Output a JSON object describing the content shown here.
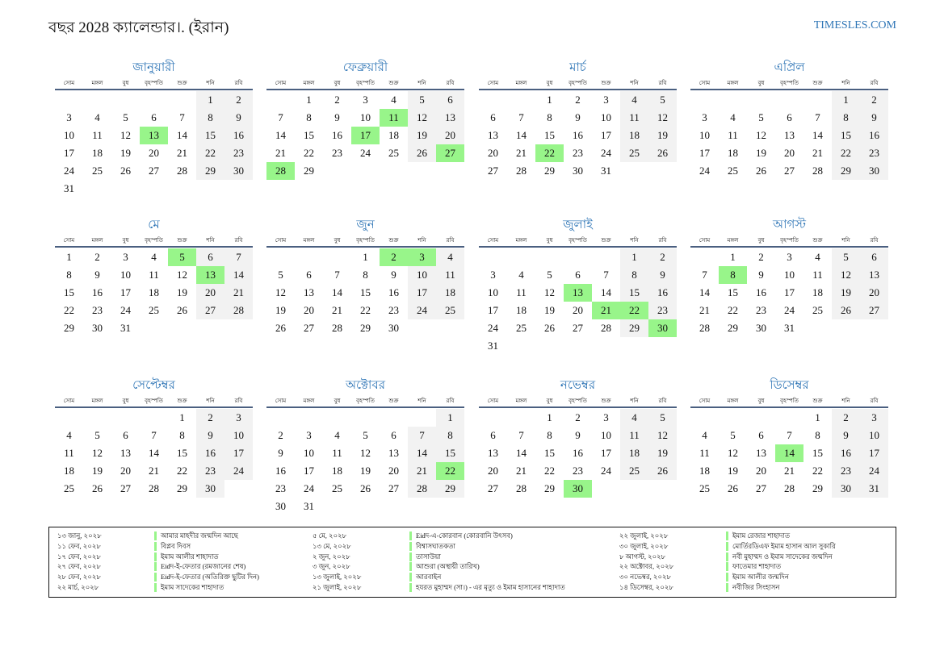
{
  "header": {
    "title": "বছর 2028 ক্যালেন্ডার।. (ইরান)",
    "site": "TIMESLES.COM",
    "accent": "#2e75b6"
  },
  "year": 2028,
  "weekdays": [
    "সোম",
    "মঙ্গল",
    "বুধ",
    "বৃহস্পতি",
    "শুক্র",
    "শনি",
    "রবি"
  ],
  "months": [
    {
      "name": "জানুয়ারী",
      "highlight": [
        13
      ]
    },
    {
      "name": "ফেব্রুয়ারী",
      "highlight": [
        11,
        17,
        27,
        28
      ]
    },
    {
      "name": "মার্চ",
      "highlight": [
        22
      ]
    },
    {
      "name": "এপ্রিল",
      "highlight": []
    },
    {
      "name": "মে",
      "highlight": [
        5,
        13
      ]
    },
    {
      "name": "জুন",
      "highlight": [
        2,
        3
      ]
    },
    {
      "name": "জুলাই",
      "highlight": [
        13,
        21,
        22,
        30
      ]
    },
    {
      "name": "আগস্ট",
      "highlight": [
        8
      ]
    },
    {
      "name": "সেপ্টেম্বর",
      "highlight": []
    },
    {
      "name": "অক্টোবর",
      "highlight": [
        22
      ]
    },
    {
      "name": "নভেম্বর",
      "highlight": [
        30
      ]
    },
    {
      "name": "ডিসেম্বর",
      "highlight": [
        14
      ]
    }
  ],
  "colors": {
    "highlight": "#98f58a",
    "weekend": "#f2f2f2",
    "rule": "#4a5f80"
  },
  "holidays": [
    [
      {
        "date": "১৩ জানু, ২০২৮",
        "name": "আমার মাহদীর জন্মদিন আছে"
      },
      {
        "date": "১১ ফেব, ২০২৮",
        "name": "বিপ্লব দিবস"
      },
      {
        "date": "১৭ ফেব, ২০২৮",
        "name": "ইমাম আলীর শাহাদাত"
      },
      {
        "date": "২৭ ফেব, ২০২৮",
        "name": "Eidদ-ই-ফেতার (রমজানের শেষ)"
      },
      {
        "date": "২৮ ফেব, ২০২৮",
        "name": "Eidদ-ই-ফেতার (অতিরিক্ত ছুটির দিন)"
      },
      {
        "date": "২২ মার্চ, ২০২৮",
        "name": "ইমাম সাদেকের শাহাদাত"
      }
    ],
    [
      {
        "date": "৫ মে, ২০২৮",
        "name": "Eidদ-এ-কোরবান (কোরবানি উৎসব)"
      },
      {
        "date": "১৩ মে, ২০২৮",
        "name": "বিশ্বাসঘাতকতা"
      },
      {
        "date": "২ জুন, ২০২৮",
        "name": "তাসাউয়া"
      },
      {
        "date": "৩ জুন, ২০২৮",
        "name": "আশুরা (অস্থায়ী তারিখ)"
      },
      {
        "date": "১৩ জুলাই, ২০২৮",
        "name": "আরবাইন"
      },
      {
        "date": "২১ জুলাই, ২০২৮",
        "name": "হযরত মুহাম্মদ (সা।) - এর মৃত্যু ও ইমাম হাসানের শাহাদাত"
      }
    ],
    [
      {
        "date": "২২ জুলাই, ২০২৮",
        "name": "ইমাম রেজার শাহাদাত"
      },
      {
        "date": "৩০ জুলাই, ২০২৮",
        "name": "মোর্তিরডিএফ ইমাম হাসান আল সুকারি"
      },
      {
        "date": "৮ আগস্ট, ২০২৮",
        "name": "নবী মুহাম্মদ ও ইমাম সাদেকের জন্মদিন"
      },
      {
        "date": "২২ অক্টোবর, ২০২৮",
        "name": "ফাতেমার শাহাদাত"
      },
      {
        "date": "৩০ নভেম্বর, ২০২৮",
        "name": "ইমাম আলীর জন্মদিন"
      },
      {
        "date": "১৪ ডিসেম্বর, ২০২৮",
        "name": "নবীজির সিংহাসন"
      }
    ]
  ]
}
